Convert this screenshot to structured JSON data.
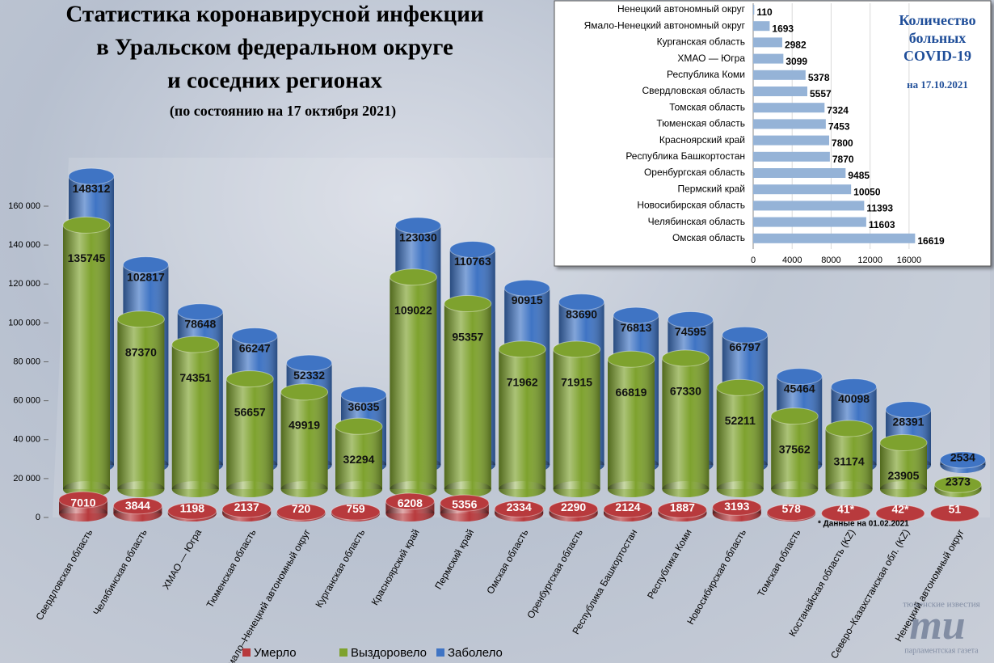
{
  "chart_data": [
    {
      "type": "cylinder",
      "title_lines": [
        "Статистика коронавирусной инфекции",
        "в Уральском федеральном округе",
        "и соседних регионах"
      ],
      "subtitle": "(по состоянию на 17 октября 2021)",
      "categories": [
        "Свердловская область",
        "Челябинская область",
        "ХМАО — Югра",
        "Тюменская область",
        "Ямало–Ненецкий автономный округ",
        "Курганская область",
        "Красноярский край",
        "Пермский край",
        "Омская область",
        "Оренбургская область",
        "Республика Башкортостан",
        "Республика Коми",
        "Новосибирская область",
        "Томская область",
        "Костанайская область (KZ)",
        "Северо–Казахстанская обл. (KZ)",
        "Ненецкий автономный округ"
      ],
      "series": [
        {
          "name": "Заболело",
          "color": "#3f74c4",
          "values": [
            148312,
            102817,
            78648,
            66247,
            52332,
            36035,
            123030,
            110763,
            90915,
            83690,
            76813,
            74595,
            66797,
            45464,
            40098,
            28391,
            2534
          ]
        },
        {
          "name": "Выздоровело",
          "color": "#7ea22e",
          "values": [
            135745,
            87370,
            74351,
            56657,
            49919,
            32294,
            109022,
            95357,
            71962,
            71915,
            66819,
            67330,
            52211,
            37562,
            31174,
            23905,
            2373
          ]
        },
        {
          "name": "Умерло",
          "color": "#b83a3d",
          "values": [
            7010,
            3844,
            1198,
            2137,
            720,
            759,
            6208,
            5356,
            2334,
            2290,
            2124,
            1887,
            3193,
            578,
            41,
            42,
            51
          ],
          "value_labels": [
            "7010",
            "3844",
            "1198",
            "2137",
            "720",
            "759",
            "6208",
            "5356",
            "2334",
            "2290",
            "2124",
            "1887",
            "3193",
            "578",
            "41*",
            "42*",
            "51"
          ]
        }
      ],
      "legend_order": [
        2,
        1,
        0
      ],
      "annotation": "* Данные на 01.02.2021",
      "ylim": [
        0,
        160000
      ],
      "yticks": [
        0,
        {
          "value": 20000,
          "label": "20 000"
        },
        {
          "value": 40000,
          "label": "40 000"
        },
        {
          "value": 60000,
          "label": "60 000"
        },
        {
          "value": 80000,
          "label": "80 000"
        },
        {
          "value": 100000,
          "label": "100 000"
        },
        {
          "value": 120000,
          "label": "120 000"
        },
        {
          "value": 140000,
          "label": "140 000"
        },
        {
          "value": 160000,
          "label": "160 000"
        }
      ]
    },
    {
      "type": "barh",
      "title": "Количество больных COVID-19",
      "subtitle": "на 17.10.2021",
      "categories": [
        "Ненецкий автономный округ",
        "Ямало-Ненецкий автономный округ",
        "Курганская область",
        "ХМАО — Югра",
        "Республика Коми",
        "Свердловская область",
        "Томская область",
        "Тюменская область",
        "Красноярский край",
        "Республика Башкортостан",
        "Оренбургская область",
        "Пермский край",
        "Новосибирская область",
        "Челябинская область",
        "Омская область"
      ],
      "values": [
        110,
        1693,
        2982,
        3099,
        5378,
        5557,
        7324,
        7453,
        7800,
        7870,
        9485,
        10050,
        11393,
        11603,
        16619
      ],
      "color": "#95b3d7",
      "xlim": [
        0,
        18000
      ],
      "xticks": [
        0,
        4000,
        8000,
        12000,
        16000
      ],
      "grid": true
    }
  ],
  "logo": {
    "top": "тюменские известия",
    "mark": "ти",
    "bottom": "парламентская газета"
  }
}
